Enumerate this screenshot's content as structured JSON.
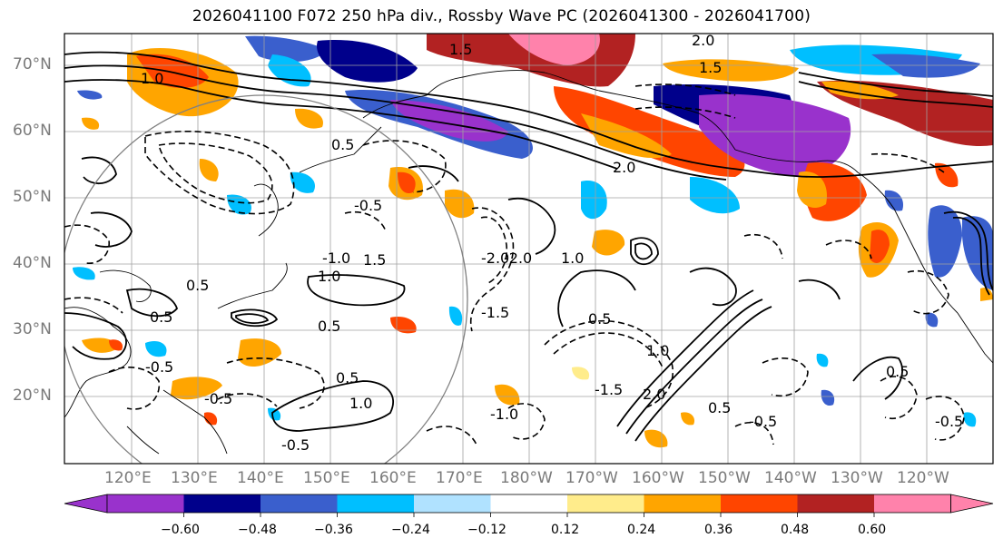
{
  "title": "2026041100 F072 250 hPa div., Rossby Wave PC (2026041300 - 2026041700)",
  "latitude_labels": [
    "70°N",
    "60°N",
    "50°N",
    "40°N",
    "30°N",
    "20°N"
  ],
  "longitude_labels": [
    "120°E",
    "130°E",
    "140°E",
    "150°E",
    "160°E",
    "170°E",
    "180°W",
    "170°W",
    "160°W",
    "150°W",
    "140°W",
    "130°W",
    "120°W"
  ],
  "colorbar": {
    "ticks": [
      "−0.60",
      "−0.48",
      "−0.36",
      "−0.24",
      "−0.12",
      "0.12",
      "0.24",
      "0.36",
      "0.48",
      "0.60"
    ],
    "colors": [
      "#9932cc",
      "#00008b",
      "#3a5fcd",
      "#00bfff",
      "#b0e2ff",
      "#ffffff",
      "#ffec8b",
      "#ffa500",
      "#ff4500",
      "#b22222",
      "#ff82ab"
    ]
  },
  "contour_labels": [
    "2.0",
    "1.5",
    "1.0",
    "0.5",
    "-0.5",
    "-1.0",
    "-1.5",
    "-2.0",
    "1.0",
    "0.5",
    "-0.5",
    "1.5",
    "1.0",
    "0.5",
    "-0.5",
    "0.5",
    "-0.5",
    "-1.0",
    "1.0",
    "2.0",
    "0.5",
    "-1.5",
    "-2.0",
    "1.0",
    "0.5",
    "0.5",
    "-0.5",
    "-0.5",
    "2.0",
    "1.5",
    "0.5"
  ]
}
